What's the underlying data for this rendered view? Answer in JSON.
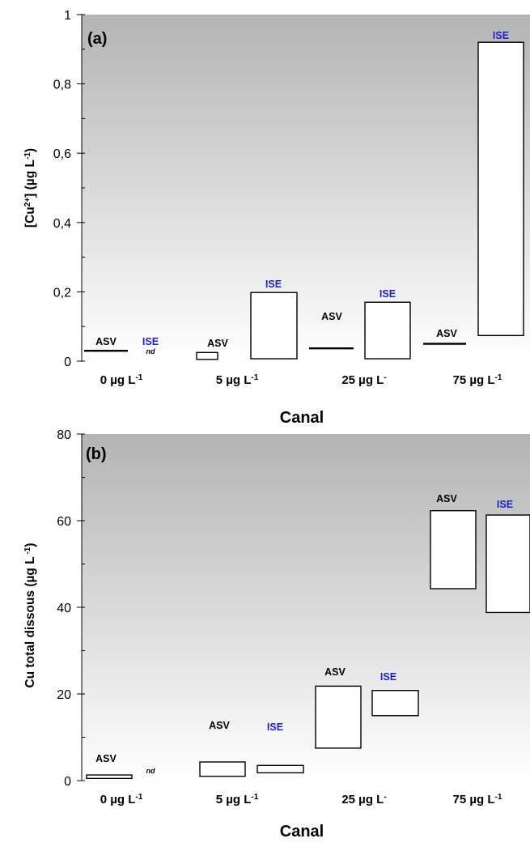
{
  "chart_data": [
    {
      "type": "floating-bar",
      "panel_label": "(a)",
      "ylabel": "[Cu2+] (µg L-1)",
      "xlabel": "Canal",
      "ylim": [
        0,
        1
      ],
      "yticks": [
        0,
        0.2,
        0.4,
        0.6,
        0.8,
        1
      ],
      "ytick_labels": [
        "0",
        "0,2",
        "0,4",
        "0,6",
        "0,8",
        "1"
      ],
      "categories": [
        "0 µg L-1",
        "5 µg L-1",
        "25 µg L-",
        "75 µg L-1"
      ],
      "series": [
        {
          "name": "ASV",
          "color": "#000000",
          "ranges": [
            [
              0.03,
              0.03
            ],
            [
              0.005,
              0.025
            ],
            [
              0.033,
              0.037
            ],
            [
              0.05,
              0.05
            ]
          ]
        },
        {
          "name": "ISE",
          "color": "#1f1fcc",
          "ranges": [
            null,
            [
              0.007,
              0.198
            ],
            [
              0.007,
              0.17
            ],
            [
              0.074,
              0.92
            ]
          ]
        }
      ],
      "annotations": [
        "nd"
      ],
      "background": "gray-to-white gradient"
    },
    {
      "type": "floating-bar",
      "panel_label": "(b)",
      "ylabel": "Cu total dissous (µg L -1)",
      "xlabel": "Canal",
      "ylim": [
        0,
        80
      ],
      "yticks": [
        0,
        20,
        40,
        60,
        80
      ],
      "ytick_labels": [
        "0",
        "20",
        "40",
        "60",
        "80"
      ],
      "categories": [
        "0 µg L-1",
        "5 µg L-1",
        "25 µg L-",
        "75 µg L-1"
      ],
      "series": [
        {
          "name": "ASV",
          "color": "#000000",
          "ranges": [
            [
              0.5,
              1.3
            ],
            [
              1.0,
              4.3
            ],
            [
              7.5,
              21.8
            ],
            [
              44.3,
              62.3
            ]
          ]
        },
        {
          "name": "ISE",
          "color": "#1f1fcc",
          "ranges": [
            null,
            [
              1.8,
              3.5
            ],
            [
              15.0,
              20.8
            ],
            [
              38.8,
              61.3
            ]
          ]
        }
      ],
      "annotations": [
        "nd"
      ],
      "background": "gray-to-white gradient"
    }
  ],
  "labels": {
    "asv": "ASV",
    "ise": "ISE",
    "nd": "nd",
    "canal": "Canal",
    "panel_a": "(a)",
    "panel_b": "(b)",
    "ylabel_a_main": "[Cu",
    "ylabel_a_sup": "2+",
    "ylabel_a_mid": "] (µg L",
    "ylabel_a_sup2": "-1",
    "ylabel_a_end": ")",
    "ylabel_b_main": "Cu total dissous (µg L",
    "ylabel_b_sup": " -1",
    "ylabel_b_end": ")",
    "cat0": "0 µg L",
    "cat0_sup": "-1",
    "cat1": "5 µg L",
    "cat1_sup": "-1",
    "cat2": "25 µg L",
    "cat2_sup": "-",
    "cat3": "75 µg L",
    "cat3_sup": "-1"
  },
  "colors": {
    "ise_label": "#1f1fcc",
    "asv_label": "#000000",
    "gradient_top": "#b4b4b4",
    "gradient_bottom": "#ffffff"
  }
}
